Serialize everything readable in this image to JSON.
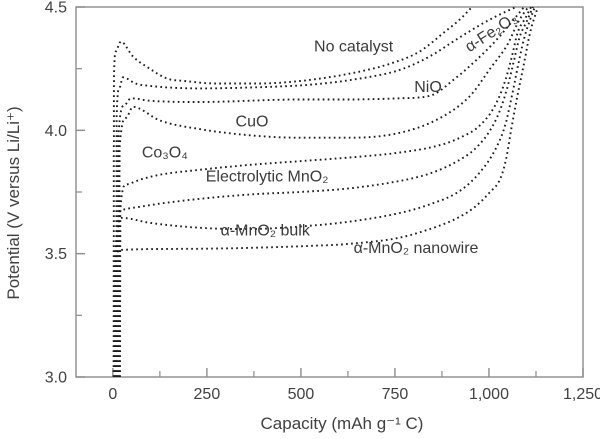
{
  "colors": {
    "background": "#ffffff",
    "curve": "#1c1c1c",
    "frame": "#8c8c8c",
    "text": "#414141"
  },
  "chart_data": {
    "type": "line",
    "style": "dotted",
    "title": "",
    "xlabel": "Capacity (mAh g⁻¹ C)",
    "ylabel": "Potential (V versus Li/Li⁺)",
    "xlim": [
      -98,
      1250
    ],
    "ylim": [
      3.0,
      4.5
    ],
    "grid": false,
    "legend_position": "inline-labels",
    "x_ticks": {
      "major_values": [
        0,
        250,
        500,
        750,
        1000,
        1250
      ],
      "major_labels": [
        "0",
        "250",
        "500",
        "750",
        "1,000",
        "1,250"
      ],
      "minor_values": [
        125,
        375,
        625,
        875,
        1125
      ]
    },
    "y_ticks": {
      "major_values": [
        3.0,
        3.5,
        4.0,
        4.5
      ],
      "major_labels": [
        "3.0",
        "3.5",
        "4.0",
        "4.5"
      ],
      "minor_values": [
        3.25,
        3.75,
        4.25
      ]
    },
    "series": [
      {
        "name": "No catalyst",
        "label": {
          "text": "No catalyst",
          "x": 640,
          "y": 4.32,
          "rotate": 0
        },
        "points": [
          [
            2,
            3.0
          ],
          [
            3,
            4.22
          ],
          [
            8,
            4.32
          ],
          [
            21,
            4.36
          ],
          [
            53,
            4.3
          ],
          [
            98,
            4.25
          ],
          [
            144,
            4.21
          ],
          [
            191,
            4.2
          ],
          [
            271,
            4.19
          ],
          [
            391,
            4.19
          ],
          [
            497,
            4.2
          ],
          [
            630,
            4.23
          ],
          [
            737,
            4.27
          ],
          [
            816,
            4.32
          ],
          [
            883,
            4.4
          ],
          [
            923,
            4.45
          ],
          [
            955,
            4.5
          ]
        ]
      },
      {
        "name": "α-Fe₂O₃",
        "label": {
          "text": "α-Fe₂O₃",
          "x": 1013,
          "y": 4.38,
          "rotate": -33
        },
        "points": [
          [
            9,
            3.0
          ],
          [
            10,
            4.05
          ],
          [
            17,
            4.17
          ],
          [
            27,
            4.215
          ],
          [
            60,
            4.19
          ],
          [
            98,
            4.18
          ],
          [
            231,
            4.17
          ],
          [
            391,
            4.175
          ],
          [
            524,
            4.185
          ],
          [
            657,
            4.21
          ],
          [
            763,
            4.245
          ],
          [
            843,
            4.3
          ],
          [
            910,
            4.365
          ],
          [
            963,
            4.415
          ],
          [
            1016,
            4.46
          ],
          [
            1072,
            4.5
          ]
        ]
      },
      {
        "name": "NiO",
        "label": {
          "text": "NiO",
          "x": 838,
          "y": 4.155,
          "rotate": 0
        },
        "points": [
          [
            14,
            3.0
          ],
          [
            15,
            3.98
          ],
          [
            30,
            4.1
          ],
          [
            48,
            4.13
          ],
          [
            98,
            4.12
          ],
          [
            231,
            4.115
          ],
          [
            497,
            4.125
          ],
          [
            630,
            4.125
          ],
          [
            763,
            4.13
          ],
          [
            843,
            4.14
          ],
          [
            910,
            4.21
          ],
          [
            963,
            4.28
          ],
          [
            1016,
            4.36
          ],
          [
            1050,
            4.42
          ],
          [
            1093,
            4.5
          ]
        ]
      },
      {
        "name": "CuO",
        "label": {
          "text": "CuO",
          "x": 370,
          "y": 4.015,
          "rotate": 0
        },
        "points": [
          [
            17,
            3.0
          ],
          [
            18,
            3.93
          ],
          [
            35,
            4.05
          ],
          [
            53,
            4.095
          ],
          [
            125,
            4.04
          ],
          [
            231,
            4.005
          ],
          [
            364,
            3.98
          ],
          [
            497,
            3.97
          ],
          [
            630,
            3.97
          ],
          [
            763,
            3.99
          ],
          [
            870,
            4.05
          ],
          [
            950,
            4.14
          ],
          [
            1003,
            4.25
          ],
          [
            1050,
            4.35
          ],
          [
            1078,
            4.44
          ],
          [
            1104,
            4.5
          ]
        ]
      },
      {
        "name": "Co₃O₄",
        "label": {
          "text": "Co₃O₄",
          "x": 138,
          "y": 3.89,
          "rotate": 0
        },
        "points": [
          [
            19,
            3.0
          ],
          [
            20,
            3.68
          ],
          [
            35,
            3.78
          ],
          [
            72,
            3.8
          ],
          [
            125,
            3.82
          ],
          [
            231,
            3.84
          ],
          [
            364,
            3.86
          ],
          [
            497,
            3.875
          ],
          [
            630,
            3.89
          ],
          [
            763,
            3.91
          ],
          [
            870,
            3.94
          ],
          [
            923,
            3.97
          ],
          [
            976,
            4.02
          ],
          [
            1016,
            4.1
          ],
          [
            1043,
            4.2
          ],
          [
            1061,
            4.3
          ],
          [
            1077,
            4.4
          ],
          [
            1095,
            4.45
          ],
          [
            1112,
            4.5
          ]
        ]
      },
      {
        "name": "Electrolytic MnO₂",
        "label": {
          "text": "Electrolytic MnO₂",
          "x": 410,
          "y": 3.793,
          "rotate": 0
        },
        "points": [
          [
            11,
            3.0
          ],
          [
            12,
            3.58
          ],
          [
            21,
            3.675
          ],
          [
            72,
            3.69
          ],
          [
            160,
            3.71
          ],
          [
            364,
            3.74
          ],
          [
            497,
            3.75
          ],
          [
            630,
            3.765
          ],
          [
            763,
            3.795
          ],
          [
            843,
            3.825
          ],
          [
            910,
            3.87
          ],
          [
            963,
            3.925
          ],
          [
            1003,
            4.0
          ],
          [
            1029,
            4.08
          ],
          [
            1050,
            4.18
          ],
          [
            1066,
            4.28
          ],
          [
            1082,
            4.38
          ],
          [
            1100,
            4.44
          ],
          [
            1117,
            4.5
          ]
        ]
      },
      {
        "name": "α-MnO₂ bulk",
        "label": {
          "text": "α-MnO₂ bulk",
          "x": 405,
          "y": 3.573,
          "rotate": 0
        },
        "points": [
          [
            6,
            3.0
          ],
          [
            7,
            3.52
          ],
          [
            24,
            3.645
          ],
          [
            98,
            3.625
          ],
          [
            231,
            3.605
          ],
          [
            364,
            3.6
          ],
          [
            497,
            3.61
          ],
          [
            630,
            3.63
          ],
          [
            763,
            3.665
          ],
          [
            843,
            3.7
          ],
          [
            923,
            3.755
          ],
          [
            976,
            3.83
          ],
          [
            1016,
            3.92
          ],
          [
            1043,
            4.02
          ],
          [
            1061,
            4.14
          ],
          [
            1077,
            4.26
          ],
          [
            1093,
            4.37
          ],
          [
            1105,
            4.43
          ],
          [
            1122,
            4.5
          ]
        ]
      },
      {
        "name": "α-MnO₂ nanowire",
        "label": {
          "text": "α-MnO₂ nanowire",
          "x": 806,
          "y": 3.503,
          "rotate": 0
        },
        "points": [
          [
            4,
            3.0
          ],
          [
            5,
            3.44
          ],
          [
            19,
            3.515
          ],
          [
            231,
            3.52
          ],
          [
            497,
            3.53
          ],
          [
            630,
            3.54
          ],
          [
            763,
            3.565
          ],
          [
            843,
            3.6
          ],
          [
            910,
            3.64
          ],
          [
            963,
            3.69
          ],
          [
            1003,
            3.75
          ],
          [
            1029,
            3.8
          ],
          [
            1045,
            3.88
          ],
          [
            1061,
            4.02
          ],
          [
            1077,
            4.15
          ],
          [
            1093,
            4.27
          ],
          [
            1110,
            4.4
          ],
          [
            1130,
            4.5
          ]
        ]
      }
    ]
  }
}
